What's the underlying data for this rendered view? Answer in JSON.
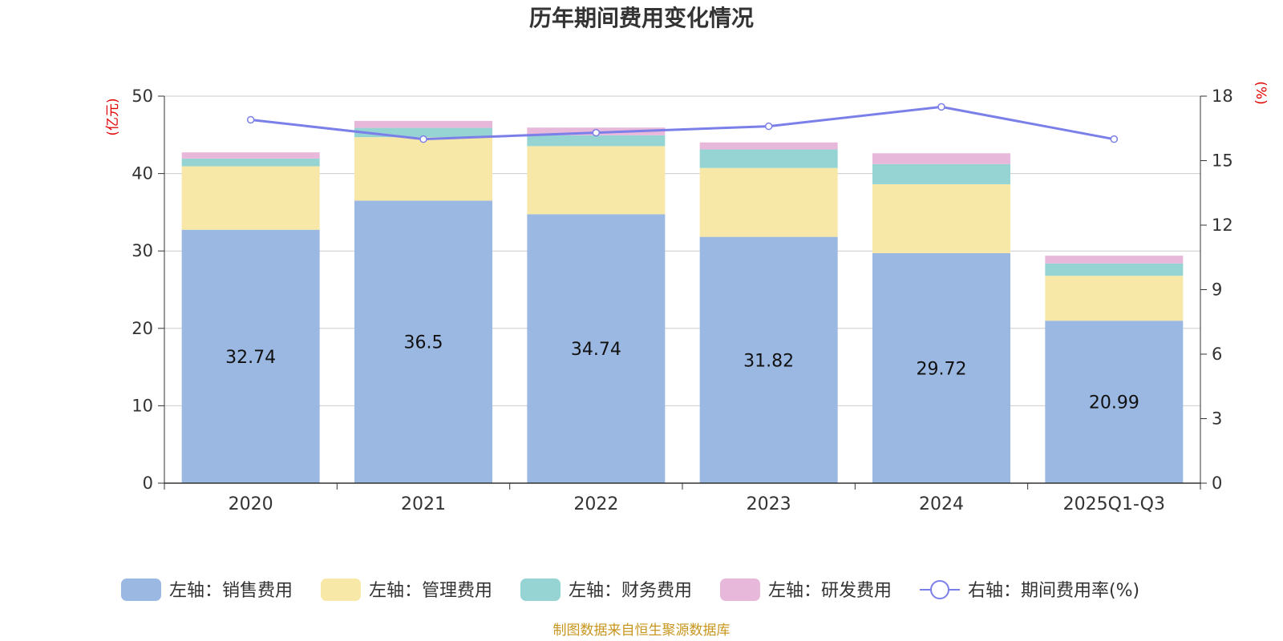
{
  "chart_data": {
    "type": "bar",
    "stacked": true,
    "title": "历年期间费用变化情况",
    "categories": [
      "2020",
      "2021",
      "2022",
      "2023",
      "2024",
      "2025Q1-Q3"
    ],
    "left_axis": {
      "unit": "(亿元)",
      "ylim": [
        0,
        50
      ],
      "ticks": [
        0,
        10,
        20,
        30,
        40,
        50
      ]
    },
    "right_axis": {
      "unit": "(%)",
      "ylim": [
        0,
        18
      ],
      "ticks": [
        0,
        3,
        6,
        9,
        12,
        15,
        18
      ]
    },
    "series": [
      {
        "name": "左轴：销售费用",
        "axis": "left",
        "color": "#9bb8e2",
        "values": [
          32.74,
          36.5,
          34.74,
          31.82,
          29.72,
          20.99
        ],
        "labels": [
          "32.74",
          "36.5",
          "34.74",
          "31.82",
          "29.72",
          "20.99"
        ]
      },
      {
        "name": "左轴：管理费用",
        "axis": "left",
        "color": "#f8e8a8",
        "values": [
          8.2,
          8.2,
          8.8,
          8.9,
          8.9,
          5.8
        ]
      },
      {
        "name": "左轴：财务费用",
        "axis": "left",
        "color": "#96d4d4",
        "values": [
          1.0,
          1.2,
          1.4,
          2.4,
          2.6,
          1.6
        ]
      },
      {
        "name": "左轴：研发费用",
        "axis": "left",
        "color": "#e8b8da",
        "values": [
          0.8,
          0.9,
          1.0,
          0.9,
          1.4,
          1.0
        ]
      }
    ],
    "line": {
      "name": "右轴：期间费用率(%)",
      "axis": "right",
      "color": "#7b7fe8",
      "values": [
        16.9,
        16.0,
        16.3,
        16.6,
        17.5,
        16.0
      ]
    },
    "source": "制图数据来自恒生聚源数据库"
  }
}
